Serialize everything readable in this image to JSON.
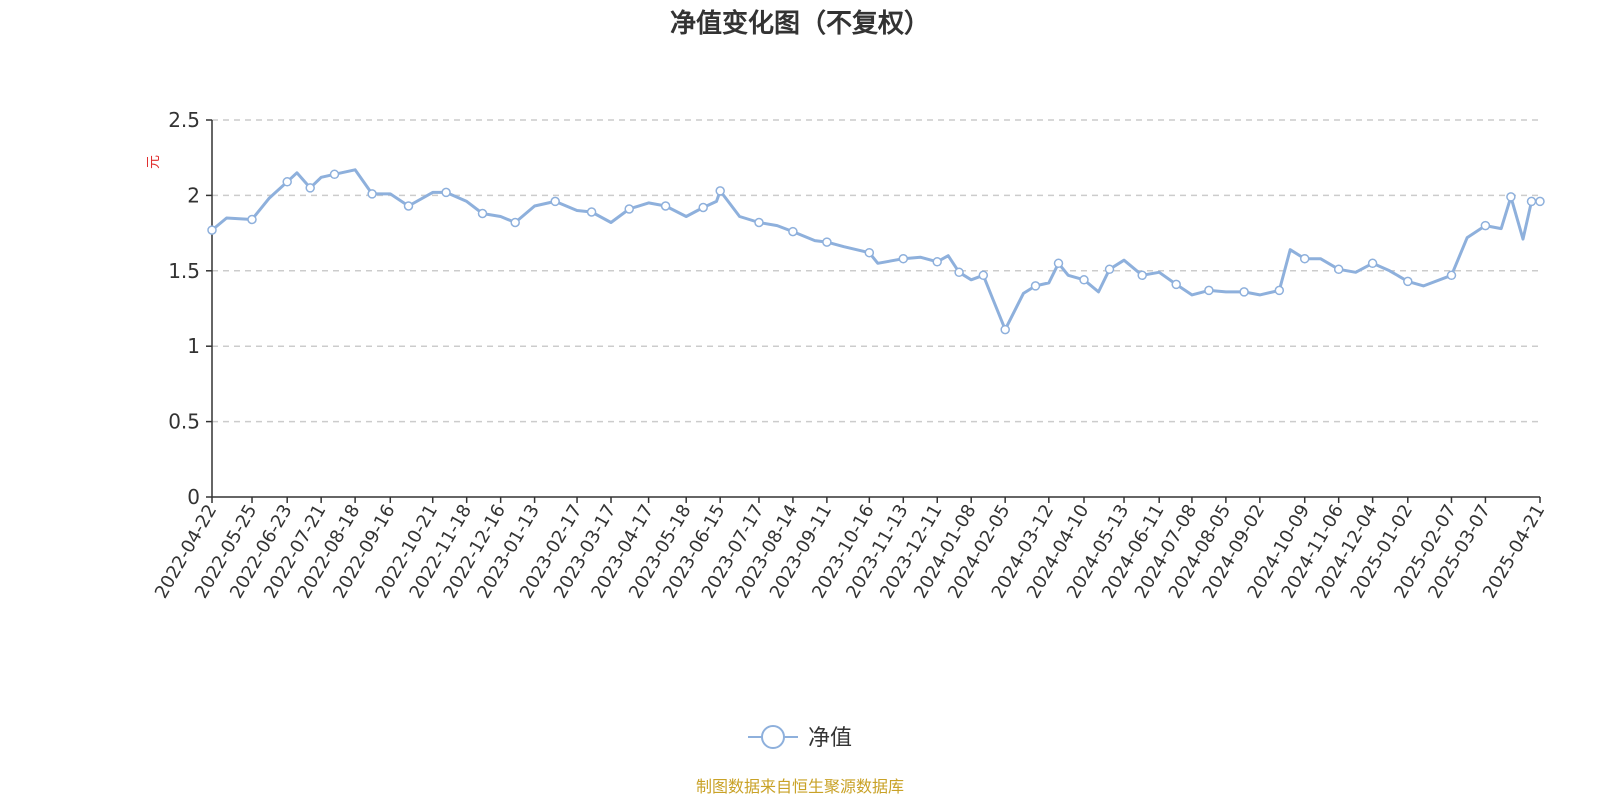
{
  "chart_data": {
    "type": "line",
    "title": "净值变化图（不复权）",
    "ylabel": "元",
    "ylim": [
      0,
      2.5
    ],
    "yticks": [
      "0",
      "0.5",
      "1",
      "1.5",
      "2",
      "2.5"
    ],
    "grid": true,
    "legend_position": "bottom-center",
    "series_color": "#8eb0dc",
    "x_tick_labels": [
      "2022-04-22",
      "2022-05-25",
      "2022-06-23",
      "2022-07-21",
      "2022-08-18",
      "2022-09-16",
      "2022-10-21",
      "2022-11-18",
      "2022-12-16",
      "2023-01-13",
      "2023-02-17",
      "2023-03-17",
      "2023-04-17",
      "2023-05-18",
      "2023-06-15",
      "2023-07-17",
      "2023-08-14",
      "2023-09-11",
      "2023-10-16",
      "2023-11-13",
      "2023-12-11",
      "2024-01-08",
      "2024-02-05",
      "2024-03-12",
      "2024-04-10",
      "2024-05-13",
      "2024-06-11",
      "2024-07-08",
      "2024-08-05",
      "2024-09-02",
      "2024-10-09",
      "2024-11-06",
      "2024-12-04",
      "2025-01-02",
      "2025-02-07",
      "2025-03-07",
      "2025-04-21"
    ],
    "series": [
      {
        "name": "净值",
        "points": [
          {
            "x": "2022-04-22",
            "y": 1.77
          },
          {
            "x": "2022-05-04",
            "y": 1.85
          },
          {
            "x": "2022-05-25",
            "y": 1.84
          },
          {
            "x": "2022-06-08",
            "y": 1.98
          },
          {
            "x": "2022-06-23",
            "y": 2.09
          },
          {
            "x": "2022-07-01",
            "y": 2.15
          },
          {
            "x": "2022-07-12",
            "y": 2.05
          },
          {
            "x": "2022-07-21",
            "y": 2.12
          },
          {
            "x": "2022-08-01",
            "y": 2.14
          },
          {
            "x": "2022-08-18",
            "y": 2.17
          },
          {
            "x": "2022-09-01",
            "y": 2.01
          },
          {
            "x": "2022-09-16",
            "y": 2.01
          },
          {
            "x": "2022-10-01",
            "y": 1.93
          },
          {
            "x": "2022-10-21",
            "y": 2.02
          },
          {
            "x": "2022-11-01",
            "y": 2.02
          },
          {
            "x": "2022-11-18",
            "y": 1.96
          },
          {
            "x": "2022-12-01",
            "y": 1.88
          },
          {
            "x": "2022-12-16",
            "y": 1.86
          },
          {
            "x": "2022-12-28",
            "y": 1.82
          },
          {
            "x": "2023-01-13",
            "y": 1.93
          },
          {
            "x": "2023-01-30",
            "y": 1.96
          },
          {
            "x": "2023-02-17",
            "y": 1.9
          },
          {
            "x": "2023-03-01",
            "y": 1.89
          },
          {
            "x": "2023-03-17",
            "y": 1.82
          },
          {
            "x": "2023-04-01",
            "y": 1.91
          },
          {
            "x": "2023-04-17",
            "y": 1.95
          },
          {
            "x": "2023-05-01",
            "y": 1.93
          },
          {
            "x": "2023-05-18",
            "y": 1.86
          },
          {
            "x": "2023-06-01",
            "y": 1.92
          },
          {
            "x": "2023-06-12",
            "y": 1.96
          },
          {
            "x": "2023-06-15",
            "y": 2.03
          },
          {
            "x": "2023-07-01",
            "y": 1.86
          },
          {
            "x": "2023-07-17",
            "y": 1.82
          },
          {
            "x": "2023-08-01",
            "y": 1.8
          },
          {
            "x": "2023-08-14",
            "y": 1.76
          },
          {
            "x": "2023-09-01",
            "y": 1.7
          },
          {
            "x": "2023-09-11",
            "y": 1.69
          },
          {
            "x": "2023-09-25",
            "y": 1.66
          },
          {
            "x": "2023-10-16",
            "y": 1.62
          },
          {
            "x": "2023-10-23",
            "y": 1.55
          },
          {
            "x": "2023-11-13",
            "y": 1.58
          },
          {
            "x": "2023-11-27",
            "y": 1.59
          },
          {
            "x": "2023-12-11",
            "y": 1.56
          },
          {
            "x": "2023-12-20",
            "y": 1.6
          },
          {
            "x": "2023-12-29",
            "y": 1.49
          },
          {
            "x": "2024-01-08",
            "y": 1.44
          },
          {
            "x": "2024-01-18",
            "y": 1.47
          },
          {
            "x": "2024-01-26",
            "y": 1.31
          },
          {
            "x": "2024-02-05",
            "y": 1.11
          },
          {
            "x": "2024-02-20",
            "y": 1.35
          },
          {
            "x": "2024-03-01",
            "y": 1.4
          },
          {
            "x": "2024-03-12",
            "y": 1.42
          },
          {
            "x": "2024-03-20",
            "y": 1.55
          },
          {
            "x": "2024-03-28",
            "y": 1.47
          },
          {
            "x": "2024-04-10",
            "y": 1.44
          },
          {
            "x": "2024-04-22",
            "y": 1.36
          },
          {
            "x": "2024-05-01",
            "y": 1.51
          },
          {
            "x": "2024-05-13",
            "y": 1.57
          },
          {
            "x": "2024-05-28",
            "y": 1.47
          },
          {
            "x": "2024-06-11",
            "y": 1.49
          },
          {
            "x": "2024-06-25",
            "y": 1.41
          },
          {
            "x": "2024-07-08",
            "y": 1.34
          },
          {
            "x": "2024-07-22",
            "y": 1.37
          },
          {
            "x": "2024-08-05",
            "y": 1.36
          },
          {
            "x": "2024-08-20",
            "y": 1.36
          },
          {
            "x": "2024-09-02",
            "y": 1.34
          },
          {
            "x": "2024-09-18",
            "y": 1.37
          },
          {
            "x": "2024-09-27",
            "y": 1.64
          },
          {
            "x": "2024-10-09",
            "y": 1.58
          },
          {
            "x": "2024-10-22",
            "y": 1.58
          },
          {
            "x": "2024-11-06",
            "y": 1.51
          },
          {
            "x": "2024-11-20",
            "y": 1.49
          },
          {
            "x": "2024-12-04",
            "y": 1.55
          },
          {
            "x": "2024-12-18",
            "y": 1.5
          },
          {
            "x": "2025-01-02",
            "y": 1.43
          },
          {
            "x": "2025-01-15",
            "y": 1.4
          },
          {
            "x": "2025-02-07",
            "y": 1.47
          },
          {
            "x": "2025-02-20",
            "y": 1.72
          },
          {
            "x": "2025-03-07",
            "y": 1.8
          },
          {
            "x": "2025-03-20",
            "y": 1.78
          },
          {
            "x": "2025-03-28",
            "y": 1.99
          },
          {
            "x": "2025-04-07",
            "y": 1.71
          },
          {
            "x": "2025-04-14",
            "y": 1.96
          },
          {
            "x": "2025-04-21",
            "y": 1.96
          }
        ]
      }
    ]
  },
  "legend": {
    "series_label": "净值"
  },
  "source_note": "制图数据来自恒生聚源数据库"
}
